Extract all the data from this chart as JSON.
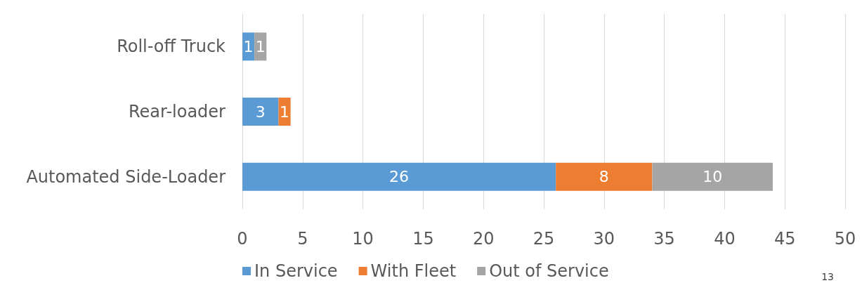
{
  "chart_data": {
    "type": "bar",
    "orientation": "horizontal",
    "stacked": true,
    "categories": [
      "Roll-off Truck",
      "Rear-loader",
      "Automated Side-Loader"
    ],
    "series": [
      {
        "name": "In Service",
        "color": "#5b9bd5",
        "values": [
          1,
          3,
          26
        ]
      },
      {
        "name": "With Fleet",
        "color": "#ed7d31",
        "values": [
          null,
          1,
          8
        ]
      },
      {
        "name": "Out of Service",
        "color": "#a5a5a5",
        "values": [
          1,
          null,
          10
        ]
      }
    ],
    "xlim": [
      0,
      50
    ],
    "xticks": [
      0,
      5,
      10,
      15,
      20,
      25,
      30,
      35,
      40,
      45,
      50
    ],
    "grid": "x",
    "legend": "bottom",
    "data_labels": true,
    "annotations": [
      "13"
    ]
  }
}
